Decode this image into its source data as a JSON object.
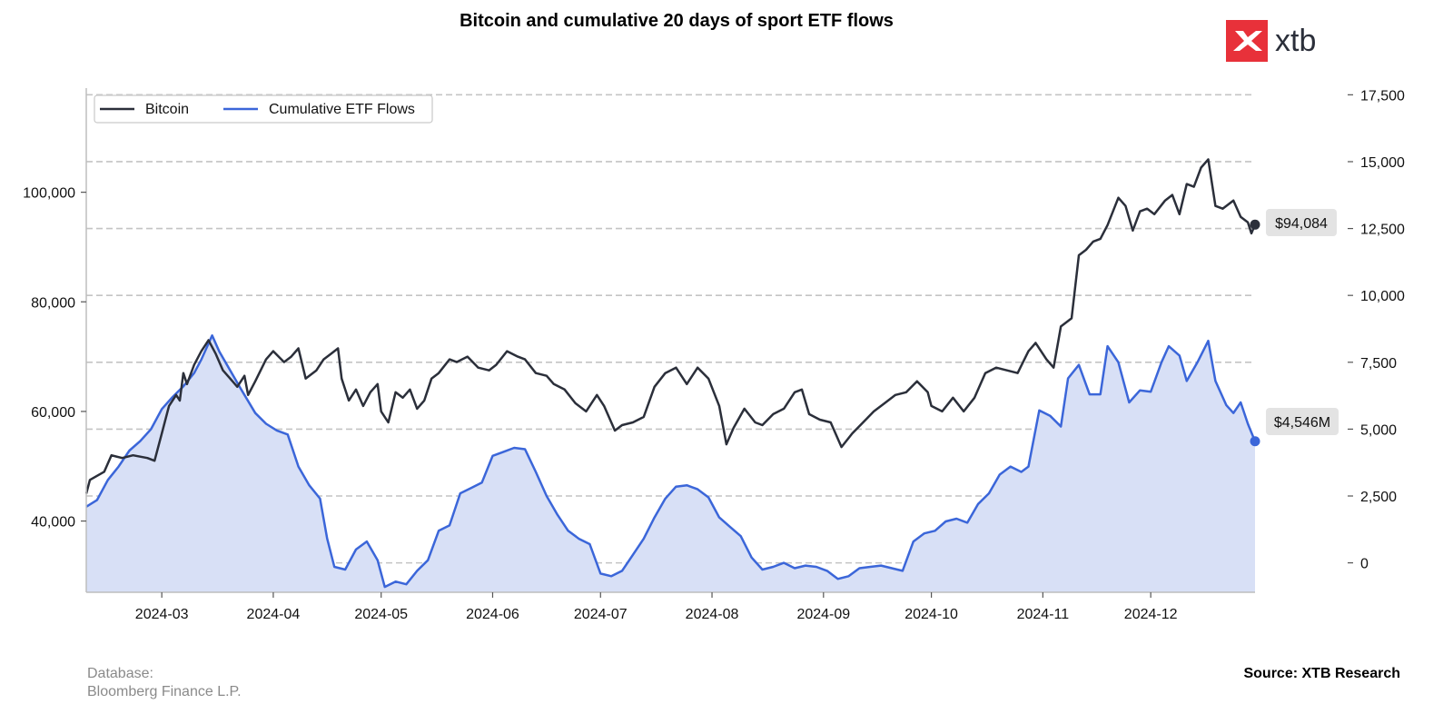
{
  "colors": {
    "bitcoin": "#2b2f3a",
    "etf": "#3b66d9",
    "etf_fill": "#d8e0f6",
    "grid": "#c4c4c4",
    "logo_red": "#e8313a",
    "tag_bg": "#e3e3e3"
  },
  "logo": {
    "icon": "xtb-x-icon",
    "text": "xtb"
  },
  "footer": {
    "database_label": "Database:",
    "database_value": "Bloomberg Finance L.P.",
    "source": "Source: XTB Research"
  },
  "chart_data": {
    "type": "line",
    "title": "Bitcoin and cumulative 20 days of sport ETF flows",
    "legend": {
      "placement": "top-left",
      "entries": [
        "Bitcoin",
        "Cumulative ETF Flows"
      ]
    },
    "grid": {
      "horizontal": true,
      "style": "dashed"
    },
    "x_range": [
      "2024-02-09",
      "2024-12-30"
    ],
    "x_ticks": [
      "2024-03",
      "2024-04",
      "2024-05",
      "2024-06",
      "2024-07",
      "2024-08",
      "2024-09",
      "2024-10",
      "2024-11",
      "2024-12"
    ],
    "y_left": {
      "min": 27000,
      "max": 119000,
      "ticks": [
        40000,
        60000,
        80000,
        100000
      ],
      "tick_labels": [
        "40,000",
        "60,000",
        "80,000",
        "100,000"
      ]
    },
    "y_right": {
      "min": -1100,
      "max": 17750,
      "ticks": [
        0,
        2500,
        5000,
        7500,
        10000,
        12500,
        15000,
        17500
      ],
      "tick_labels": [
        "0",
        "2,500",
        "5,000",
        "7,500",
        "10,000",
        "12,500",
        "15,000",
        "17,500"
      ]
    },
    "series": [
      {
        "name": "Bitcoin",
        "axis": "left",
        "last_value_label": "$94,084",
        "points": [
          [
            "2024-02-09",
            45000
          ],
          [
            "2024-02-10",
            47500
          ],
          [
            "2024-02-14",
            49000
          ],
          [
            "2024-02-16",
            52000
          ],
          [
            "2024-02-19",
            51500
          ],
          [
            "2024-02-22",
            52000
          ],
          [
            "2024-02-26",
            51500
          ],
          [
            "2024-02-28",
            51000
          ],
          [
            "2024-03-01",
            56000
          ],
          [
            "2024-03-03",
            61000
          ],
          [
            "2024-03-05",
            63000
          ],
          [
            "2024-03-06",
            62000
          ],
          [
            "2024-03-07",
            67000
          ],
          [
            "2024-03-08",
            65000
          ],
          [
            "2024-03-10",
            68500
          ],
          [
            "2024-03-12",
            71000
          ],
          [
            "2024-03-14",
            73000
          ],
          [
            "2024-03-16",
            70500
          ],
          [
            "2024-03-18",
            67500
          ],
          [
            "2024-03-20",
            66000
          ],
          [
            "2024-03-22",
            64500
          ],
          [
            "2024-03-24",
            66500
          ],
          [
            "2024-03-25",
            63000
          ],
          [
            "2024-03-27",
            65500
          ],
          [
            "2024-03-30",
            69500
          ],
          [
            "2024-04-01",
            71000
          ],
          [
            "2024-04-04",
            69000
          ],
          [
            "2024-04-06",
            70000
          ],
          [
            "2024-04-08",
            71500
          ],
          [
            "2024-04-10",
            66000
          ],
          [
            "2024-04-13",
            67500
          ],
          [
            "2024-04-15",
            69500
          ],
          [
            "2024-04-17",
            70500
          ],
          [
            "2024-04-19",
            71500
          ],
          [
            "2024-04-20",
            66000
          ],
          [
            "2024-04-22",
            62000
          ],
          [
            "2024-04-24",
            64000
          ],
          [
            "2024-04-26",
            61000
          ],
          [
            "2024-04-28",
            63500
          ],
          [
            "2024-04-30",
            65000
          ],
          [
            "2024-05-01",
            60000
          ],
          [
            "2024-05-03",
            58000
          ],
          [
            "2024-05-05",
            63500
          ],
          [
            "2024-05-07",
            62500
          ],
          [
            "2024-05-09",
            64000
          ],
          [
            "2024-05-11",
            60500
          ],
          [
            "2024-05-13",
            62000
          ],
          [
            "2024-05-15",
            66000
          ],
          [
            "2024-05-17",
            67000
          ],
          [
            "2024-05-20",
            69500
          ],
          [
            "2024-05-22",
            69000
          ],
          [
            "2024-05-25",
            70000
          ],
          [
            "2024-05-28",
            68000
          ],
          [
            "2024-05-31",
            67500
          ],
          [
            "2024-06-02",
            68500
          ],
          [
            "2024-06-05",
            71000
          ],
          [
            "2024-06-08",
            70000
          ],
          [
            "2024-06-10",
            69500
          ],
          [
            "2024-06-13",
            67000
          ],
          [
            "2024-06-16",
            66500
          ],
          [
            "2024-06-18",
            65000
          ],
          [
            "2024-06-21",
            64000
          ],
          [
            "2024-06-24",
            61500
          ],
          [
            "2024-06-27",
            60000
          ],
          [
            "2024-06-30",
            63000
          ],
          [
            "2024-07-02",
            61000
          ],
          [
            "2024-07-05",
            56500
          ],
          [
            "2024-07-07",
            57500
          ],
          [
            "2024-07-10",
            58000
          ],
          [
            "2024-07-13",
            59000
          ],
          [
            "2024-07-16",
            64500
          ],
          [
            "2024-07-19",
            67000
          ],
          [
            "2024-07-22",
            68000
          ],
          [
            "2024-07-25",
            65000
          ],
          [
            "2024-07-28",
            68000
          ],
          [
            "2024-07-31",
            66000
          ],
          [
            "2024-08-03",
            61000
          ],
          [
            "2024-08-05",
            54000
          ],
          [
            "2024-08-07",
            57000
          ],
          [
            "2024-08-10",
            60500
          ],
          [
            "2024-08-13",
            58000
          ],
          [
            "2024-08-15",
            57500
          ],
          [
            "2024-08-18",
            59500
          ],
          [
            "2024-08-21",
            60500
          ],
          [
            "2024-08-24",
            63500
          ],
          [
            "2024-08-26",
            64000
          ],
          [
            "2024-08-28",
            59500
          ],
          [
            "2024-08-31",
            58500
          ],
          [
            "2024-09-03",
            58000
          ],
          [
            "2024-09-06",
            53500
          ],
          [
            "2024-09-09",
            56000
          ],
          [
            "2024-09-12",
            58000
          ],
          [
            "2024-09-15",
            60000
          ],
          [
            "2024-09-18",
            61500
          ],
          [
            "2024-09-21",
            63000
          ],
          [
            "2024-09-24",
            63500
          ],
          [
            "2024-09-27",
            65500
          ],
          [
            "2024-09-30",
            63500
          ],
          [
            "2024-10-01",
            61000
          ],
          [
            "2024-10-04",
            60000
          ],
          [
            "2024-10-07",
            62500
          ],
          [
            "2024-10-10",
            60000
          ],
          [
            "2024-10-13",
            62500
          ],
          [
            "2024-10-16",
            67000
          ],
          [
            "2024-10-19",
            68000
          ],
          [
            "2024-10-22",
            67500
          ],
          [
            "2024-10-25",
            67000
          ],
          [
            "2024-10-28",
            71000
          ],
          [
            "2024-10-30",
            72500
          ],
          [
            "2024-11-02",
            69500
          ],
          [
            "2024-11-04",
            68000
          ],
          [
            "2024-11-06",
            75500
          ],
          [
            "2024-11-09",
            77000
          ],
          [
            "2024-11-11",
            88500
          ],
          [
            "2024-11-13",
            89500
          ],
          [
            "2024-11-15",
            91000
          ],
          [
            "2024-11-17",
            91500
          ],
          [
            "2024-11-19",
            94000
          ],
          [
            "2024-11-22",
            99000
          ],
          [
            "2024-11-24",
            97500
          ],
          [
            "2024-11-26",
            93000
          ],
          [
            "2024-11-28",
            96500
          ],
          [
            "2024-11-30",
            97000
          ],
          [
            "2024-12-02",
            96000
          ],
          [
            "2024-12-05",
            98500
          ],
          [
            "2024-12-07",
            99500
          ],
          [
            "2024-12-09",
            96000
          ],
          [
            "2024-12-11",
            101500
          ],
          [
            "2024-12-13",
            101000
          ],
          [
            "2024-12-15",
            104500
          ],
          [
            "2024-12-17",
            106000
          ],
          [
            "2024-12-19",
            97500
          ],
          [
            "2024-12-21",
            97000
          ],
          [
            "2024-12-24",
            98500
          ],
          [
            "2024-12-26",
            95500
          ],
          [
            "2024-12-28",
            94500
          ],
          [
            "2024-12-29",
            92500
          ],
          [
            "2024-12-30",
            94084
          ]
        ]
      },
      {
        "name": "Cumulative ETF Flows",
        "axis": "right",
        "last_value_label": "$4,546M",
        "points": [
          [
            "2024-02-09",
            2100
          ],
          [
            "2024-02-12",
            2350
          ],
          [
            "2024-02-15",
            3100
          ],
          [
            "2024-02-18",
            3600
          ],
          [
            "2024-02-21",
            4200
          ],
          [
            "2024-02-24",
            4550
          ],
          [
            "2024-02-27",
            5000
          ],
          [
            "2024-03-01",
            5750
          ],
          [
            "2024-03-04",
            6200
          ],
          [
            "2024-03-07",
            6600
          ],
          [
            "2024-03-10",
            7100
          ],
          [
            "2024-03-12",
            7600
          ],
          [
            "2024-03-15",
            8500
          ],
          [
            "2024-03-17",
            7900
          ],
          [
            "2024-03-20",
            7200
          ],
          [
            "2024-03-23",
            6500
          ],
          [
            "2024-03-27",
            5600
          ],
          [
            "2024-03-30",
            5200
          ],
          [
            "2024-04-02",
            4950
          ],
          [
            "2024-04-05",
            4800
          ],
          [
            "2024-04-08",
            3600
          ],
          [
            "2024-04-11",
            2900
          ],
          [
            "2024-04-14",
            2400
          ],
          [
            "2024-04-16",
            900
          ],
          [
            "2024-04-18",
            -150
          ],
          [
            "2024-04-21",
            -250
          ],
          [
            "2024-04-24",
            500
          ],
          [
            "2024-04-27",
            800
          ],
          [
            "2024-04-30",
            100
          ],
          [
            "2024-05-02",
            -900
          ],
          [
            "2024-05-05",
            -700
          ],
          [
            "2024-05-08",
            -800
          ],
          [
            "2024-05-11",
            -300
          ],
          [
            "2024-05-14",
            100
          ],
          [
            "2024-05-17",
            1200
          ],
          [
            "2024-05-20",
            1400
          ],
          [
            "2024-05-23",
            2600
          ],
          [
            "2024-05-26",
            2800
          ],
          [
            "2024-05-29",
            3000
          ],
          [
            "2024-06-01",
            4000
          ],
          [
            "2024-06-04",
            4150
          ],
          [
            "2024-06-07",
            4300
          ],
          [
            "2024-06-10",
            4250
          ],
          [
            "2024-06-13",
            3400
          ],
          [
            "2024-06-16",
            2500
          ],
          [
            "2024-06-19",
            1800
          ],
          [
            "2024-06-22",
            1200
          ],
          [
            "2024-06-25",
            900
          ],
          [
            "2024-06-28",
            700
          ],
          [
            "2024-07-01",
            -400
          ],
          [
            "2024-07-04",
            -500
          ],
          [
            "2024-07-07",
            -300
          ],
          [
            "2024-07-10",
            300
          ],
          [
            "2024-07-13",
            900
          ],
          [
            "2024-07-16",
            1700
          ],
          [
            "2024-07-19",
            2400
          ],
          [
            "2024-07-22",
            2850
          ],
          [
            "2024-07-25",
            2900
          ],
          [
            "2024-07-28",
            2750
          ],
          [
            "2024-07-31",
            2450
          ],
          [
            "2024-08-03",
            1700
          ],
          [
            "2024-08-06",
            1350
          ],
          [
            "2024-08-09",
            1000
          ],
          [
            "2024-08-12",
            200
          ],
          [
            "2024-08-15",
            -250
          ],
          [
            "2024-08-18",
            -150
          ],
          [
            "2024-08-21",
            0
          ],
          [
            "2024-08-24",
            -200
          ],
          [
            "2024-08-27",
            -100
          ],
          [
            "2024-08-30",
            -150
          ],
          [
            "2024-09-02",
            -300
          ],
          [
            "2024-09-05",
            -600
          ],
          [
            "2024-09-08",
            -500
          ],
          [
            "2024-09-11",
            -200
          ],
          [
            "2024-09-14",
            -150
          ],
          [
            "2024-09-17",
            -100
          ],
          [
            "2024-09-20",
            -200
          ],
          [
            "2024-09-23",
            -300
          ],
          [
            "2024-09-26",
            800
          ],
          [
            "2024-09-29",
            1100
          ],
          [
            "2024-10-02",
            1200
          ],
          [
            "2024-10-05",
            1550
          ],
          [
            "2024-10-08",
            1650
          ],
          [
            "2024-10-11",
            1500
          ],
          [
            "2024-10-14",
            2200
          ],
          [
            "2024-10-17",
            2600
          ],
          [
            "2024-10-20",
            3300
          ],
          [
            "2024-10-23",
            3600
          ],
          [
            "2024-10-26",
            3400
          ],
          [
            "2024-10-28",
            3600
          ],
          [
            "2024-10-31",
            5700
          ],
          [
            "2024-11-03",
            5500
          ],
          [
            "2024-11-06",
            5100
          ],
          [
            "2024-11-08",
            6900
          ],
          [
            "2024-11-11",
            7400
          ],
          [
            "2024-11-14",
            6300
          ],
          [
            "2024-11-17",
            6300
          ],
          [
            "2024-11-19",
            8100
          ],
          [
            "2024-11-22",
            7500
          ],
          [
            "2024-11-25",
            6000
          ],
          [
            "2024-11-28",
            6450
          ],
          [
            "2024-12-01",
            6400
          ],
          [
            "2024-12-04",
            7500
          ],
          [
            "2024-12-06",
            8100
          ],
          [
            "2024-12-09",
            7750
          ],
          [
            "2024-12-11",
            6800
          ],
          [
            "2024-12-14",
            7500
          ],
          [
            "2024-12-17",
            8300
          ],
          [
            "2024-12-19",
            6800
          ],
          [
            "2024-12-22",
            5900
          ],
          [
            "2024-12-24",
            5600
          ],
          [
            "2024-12-26",
            6000
          ],
          [
            "2024-12-28",
            5200
          ],
          [
            "2024-12-30",
            4546
          ]
        ]
      }
    ]
  }
}
